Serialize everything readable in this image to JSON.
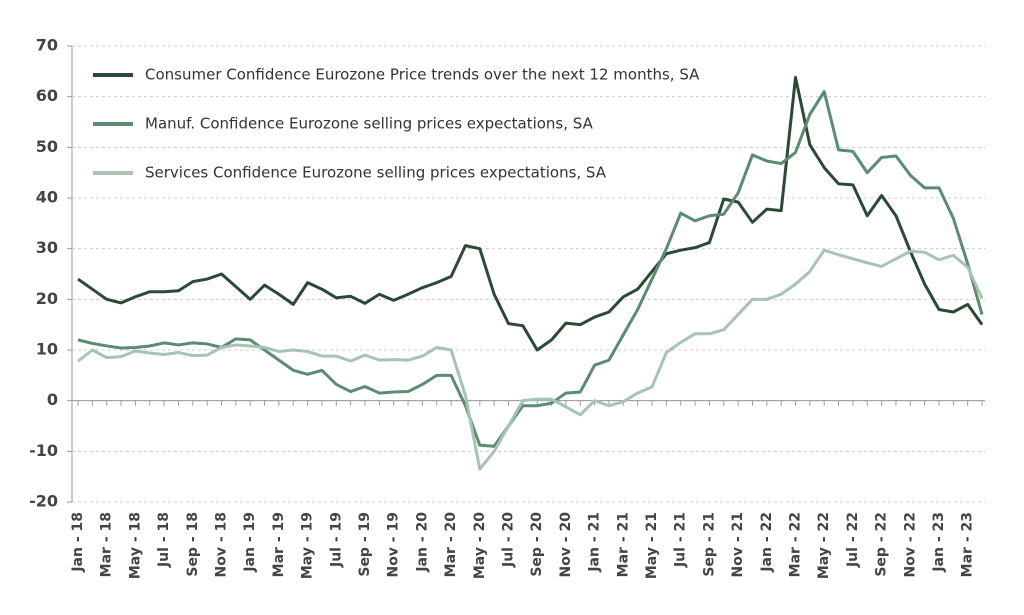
{
  "chart_data": {
    "type": "line",
    "categories": [
      "Jan - 18",
      null,
      "Mar - 18",
      null,
      "May - 18",
      null,
      "Jul - 18",
      null,
      "Sep - 18",
      null,
      "Nov - 18",
      null,
      "Jan - 19",
      null,
      "Mar - 19",
      null,
      "May - 19",
      null,
      "Jul - 19",
      null,
      "Sep - 19",
      null,
      "Nov - 19",
      null,
      "Jan - 20",
      null,
      "Mar - 20",
      null,
      "May - 20",
      null,
      "Jul - 20",
      null,
      "Sep - 20",
      null,
      "Nov - 20",
      null,
      "Jan - 21",
      null,
      "Mar - 21",
      null,
      "May - 21",
      null,
      "Jul - 21",
      null,
      "Sep - 21",
      null,
      "Nov - 21",
      null,
      "Jan - 22",
      null,
      "Mar - 22",
      null,
      "May - 22",
      null,
      "Jul - 22",
      null,
      "Sep - 22",
      null,
      "Nov - 22",
      null,
      "Jan - 23",
      null,
      "Mar - 23",
      null
    ],
    "series": [
      {
        "name": "Consumer Confidence Eurozone Price trends over the next 12 months, SA",
        "color": "#2b4a33",
        "values": [
          24,
          22,
          20,
          19.3,
          20.5,
          21.5,
          21.5,
          21.7,
          23.5,
          24,
          25,
          22.5,
          20,
          22.8,
          21,
          19,
          23.3,
          22,
          20.3,
          20.6,
          19.2,
          21,
          19.8,
          21,
          22.3,
          23.3,
          24.5,
          30.6,
          30,
          21,
          15.2,
          14.8,
          10,
          12,
          15.3,
          15,
          16.5,
          17.5,
          20.5,
          22,
          25.5,
          29,
          29.7,
          30.2,
          31.2,
          39.8,
          39.2,
          35.2,
          37.8,
          37.5,
          63.8,
          50.5,
          46,
          42.8,
          42.6,
          36.5,
          40.5,
          36.5,
          29.5,
          23,
          18,
          17.5,
          19,
          15
        ]
      },
      {
        "name": "Manuf. Confidence Eurozone selling prices expectations, SA",
        "color": "#5b8c70",
        "values": [
          12,
          11.3,
          10.8,
          10.4,
          10.5,
          10.8,
          11.4,
          11,
          11.4,
          11.2,
          10.5,
          12.2,
          12,
          10,
          8,
          6,
          5.2,
          6,
          3.2,
          1.8,
          2.8,
          1.5,
          1.7,
          1.8,
          3.2,
          5,
          5,
          -1,
          -8.8,
          -9,
          -5,
          -1,
          -1,
          -0.5,
          1.5,
          1.7,
          7,
          8,
          13,
          18,
          24,
          30,
          37,
          35.5,
          36.5,
          36.8,
          41,
          48.5,
          47.3,
          46.8,
          49,
          56.5,
          61,
          49.5,
          49.2,
          45,
          48,
          48.3,
          44.5,
          42,
          42,
          36,
          27,
          17
        ]
      },
      {
        "name": "Services Confidence Eurozone selling prices expectations, SA",
        "color": "#a5c4b2",
        "values": [
          7.8,
          10,
          8.5,
          8.7,
          9.8,
          9.4,
          9.1,
          9.5,
          8.9,
          9,
          10.5,
          11,
          10.8,
          10.5,
          9.7,
          10,
          9.7,
          8.8,
          8.8,
          7.8,
          9,
          8,
          8.1,
          8,
          8.8,
          10.5,
          10,
          1,
          -13.5,
          -10,
          -5,
          0,
          0.3,
          0.3,
          -1.2,
          -2.8,
          0,
          -1,
          -0.2,
          1.5,
          2.7,
          9.5,
          11.5,
          13.2,
          13.2,
          14,
          17,
          20,
          20,
          21,
          23,
          25.5,
          29.7,
          28.8,
          28,
          27.2,
          26.5,
          28,
          29.5,
          29.3,
          27.8,
          28.7,
          26.3,
          20.2
        ]
      }
    ],
    "ylim": [
      -20,
      70
    ],
    "yticks": [
      -20,
      -10,
      0,
      10,
      20,
      30,
      40,
      50,
      60,
      70
    ],
    "grid": true,
    "legend": "upper left"
  }
}
